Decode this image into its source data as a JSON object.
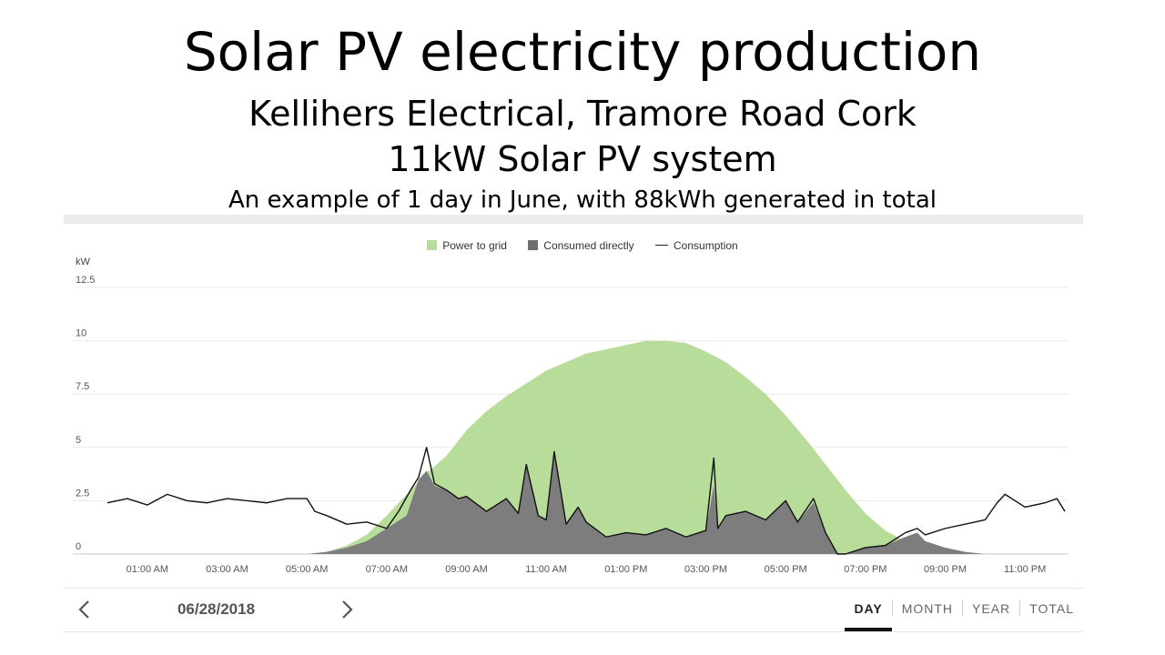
{
  "slide": {
    "title": "Solar PV electricity production",
    "subtitle": "Kellihers Electrical, Tramore Road Cork",
    "system": "11kW Solar PV system",
    "example": "An example of 1 day in June, with 88kWh generated in total"
  },
  "nav": {
    "date": "06/28/2018"
  },
  "tabs": [
    {
      "label": "DAY",
      "active": true
    },
    {
      "label": "MONTH",
      "active": false
    },
    {
      "label": "YEAR",
      "active": false
    },
    {
      "label": "TOTAL",
      "active": false
    }
  ],
  "colors": {
    "power_to_grid": "#b8dc9a",
    "consumed_directly": "#7d7d7d",
    "consumption": "#111111"
  },
  "chart_data": {
    "type": "area",
    "ylabel": "kW",
    "ylim": [
      0,
      12.5
    ],
    "yticks": [
      0,
      2.5,
      5,
      7.5,
      10,
      12.5
    ],
    "ytick_labels": [
      "0",
      "2.5",
      "5",
      "7.5",
      "10",
      "12.5"
    ],
    "xlim": [
      0,
      24
    ],
    "xticks": [
      1,
      3,
      5,
      7,
      9,
      11,
      13,
      15,
      17,
      19,
      21,
      23
    ],
    "xtick_labels": [
      "01:00 AM",
      "03:00 AM",
      "05:00 AM",
      "07:00 AM",
      "09:00 AM",
      "11:00 AM",
      "01:00 PM",
      "03:00 PM",
      "05:00 PM",
      "07:00 PM",
      "09:00 PM",
      "11:00 PM"
    ],
    "legend": [
      "Power to grid",
      "Consumed directly",
      "Consumption"
    ],
    "legend_position": "top-center",
    "grid": true,
    "series": [
      {
        "name": "Power to grid",
        "x": [
          5.0,
          5.5,
          6.0,
          6.5,
          7.0,
          7.5,
          8.0,
          8.5,
          9.0,
          9.5,
          10.0,
          10.5,
          11.0,
          11.5,
          12.0,
          12.5,
          13.0,
          13.5,
          14.0,
          14.5,
          15.0,
          15.5,
          16.0,
          16.5,
          17.0,
          17.5,
          18.0,
          18.5,
          19.0,
          19.5,
          20.0,
          20.5,
          21.0,
          21.5,
          22.0
        ],
        "values": [
          0.0,
          0.1,
          0.4,
          0.9,
          1.8,
          2.8,
          3.8,
          4.6,
          5.8,
          6.7,
          7.4,
          8.0,
          8.6,
          9.0,
          9.4,
          9.6,
          9.8,
          10.0,
          10.0,
          9.9,
          9.5,
          9.0,
          8.3,
          7.5,
          6.5,
          5.4,
          4.2,
          3.0,
          1.9,
          1.1,
          0.6,
          0.3,
          0.1,
          0.0,
          0.0
        ]
      },
      {
        "name": "Consumed directly",
        "x": [
          5.0,
          5.5,
          6.0,
          6.5,
          7.0,
          7.5,
          7.8,
          8.0,
          8.2,
          8.5,
          8.8,
          9.0,
          9.5,
          10.0,
          10.3,
          10.5,
          10.8,
          11.0,
          11.2,
          11.5,
          11.8,
          12.0,
          12.5,
          13.0,
          13.5,
          14.0,
          14.5,
          15.0,
          15.2,
          15.3,
          15.5,
          16.0,
          16.5,
          17.0,
          17.3,
          17.7,
          18.0,
          18.3,
          18.5,
          19.0,
          19.5,
          20.0,
          20.3,
          20.5,
          21.0,
          21.5,
          22.0
        ],
        "values": [
          0.0,
          0.1,
          0.3,
          0.6,
          1.2,
          1.8,
          3.5,
          3.9,
          3.2,
          3.0,
          2.6,
          2.7,
          2.0,
          2.6,
          1.9,
          4.2,
          1.8,
          1.6,
          4.8,
          1.4,
          2.2,
          1.5,
          0.8,
          1.0,
          0.9,
          1.2,
          0.8,
          1.1,
          3.2,
          1.2,
          1.8,
          2.0,
          1.6,
          2.5,
          1.5,
          2.4,
          1.0,
          0.0,
          0.0,
          0.3,
          0.4,
          0.8,
          1.0,
          0.6,
          0.3,
          0.1,
          0.0
        ]
      },
      {
        "name": "Consumption",
        "x": [
          0.0,
          0.5,
          1.0,
          1.5,
          2.0,
          2.5,
          3.0,
          3.5,
          4.0,
          4.5,
          5.0,
          5.2,
          5.5,
          6.0,
          6.5,
          7.0,
          7.3,
          7.6,
          7.8,
          8.0,
          8.2,
          8.5,
          8.8,
          9.0,
          9.5,
          10.0,
          10.3,
          10.5,
          10.8,
          11.0,
          11.2,
          11.5,
          11.8,
          12.0,
          12.5,
          13.0,
          13.5,
          14.0,
          14.5,
          15.0,
          15.2,
          15.3,
          15.5,
          16.0,
          16.5,
          17.0,
          17.3,
          17.7,
          18.0,
          18.3,
          18.5,
          19.0,
          19.5,
          20.0,
          20.3,
          20.5,
          21.0,
          21.5,
          22.0,
          22.3,
          22.5,
          23.0,
          23.5,
          23.8,
          24.0
        ],
        "values": [
          2.4,
          2.6,
          2.3,
          2.8,
          2.5,
          2.4,
          2.6,
          2.5,
          2.4,
          2.6,
          2.6,
          2.0,
          1.8,
          1.4,
          1.5,
          1.2,
          2.0,
          3.0,
          3.6,
          5.0,
          3.3,
          3.0,
          2.6,
          2.7,
          2.0,
          2.6,
          1.9,
          4.2,
          1.8,
          1.6,
          4.8,
          1.4,
          2.2,
          1.5,
          0.8,
          1.0,
          0.9,
          1.2,
          0.8,
          1.1,
          4.5,
          1.2,
          1.8,
          2.0,
          1.6,
          2.5,
          1.5,
          2.6,
          1.0,
          0.0,
          0.0,
          0.3,
          0.4,
          1.0,
          1.2,
          0.9,
          1.2,
          1.4,
          1.6,
          2.4,
          2.8,
          2.2,
          2.4,
          2.6,
          2.0
        ]
      }
    ]
  }
}
